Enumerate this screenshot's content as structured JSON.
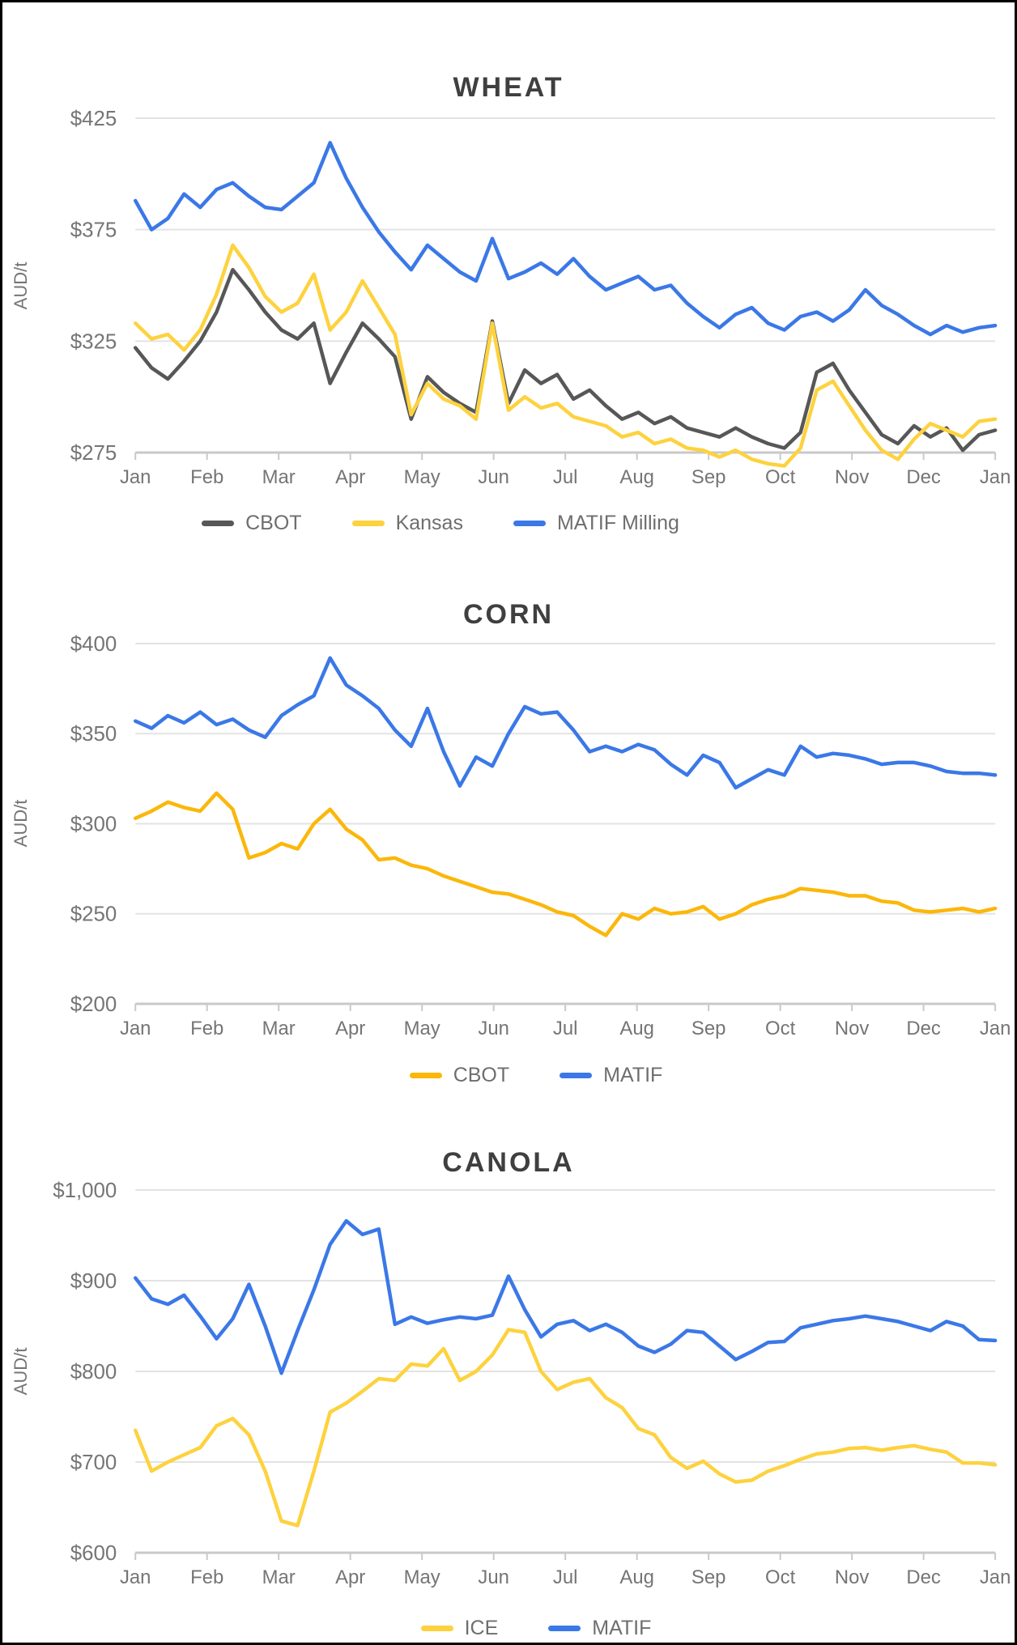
{
  "charts": [
    {
      "title": "WHEAT",
      "y_axis_title": "AUD/t",
      "y_tick_labels": [
        "$425",
        "$375",
        "$325",
        "$275"
      ],
      "x_tick_labels": [
        "Jan",
        "Feb",
        "Mar",
        "Apr",
        "May",
        "Jun",
        "Jul",
        "Aug",
        "Sep",
        "Oct",
        "Nov",
        "Dec",
        "Jan"
      ],
      "legend": [
        {
          "label": "CBOT",
          "color": "#575757"
        },
        {
          "label": "Kansas",
          "color": "#fdd23e"
        },
        {
          "label": "MATIF Milling",
          "color": "#3b78e7"
        }
      ],
      "chart_data": {
        "type": "line",
        "x_unit": "weekly, January through following January",
        "x_month_ticks": [
          "Jan",
          "Feb",
          "Mar",
          "Apr",
          "May",
          "Jun",
          "Jul",
          "Aug",
          "Sep",
          "Oct",
          "Nov",
          "Dec",
          "Jan"
        ],
        "ylabel": "AUD/t",
        "ylim": [
          275,
          425
        ],
        "grid": "horizontal only",
        "legend_position": "bottom",
        "series": [
          {
            "name": "CBOT",
            "color": "#575757",
            "values": [
              322,
              313,
              308,
              316,
              325,
              338,
              357,
              348,
              338,
              330,
              326,
              333,
              306,
              320,
              333,
              326,
              318,
              290,
              309,
              302,
              297,
              293,
              334,
              297,
              312,
              306,
              310,
              299,
              303,
              296,
              290,
              293,
              288,
              291,
              286,
              284,
              282,
              286,
              282,
              279,
              277,
              284,
              311,
              315,
              303,
              293,
              283,
              279,
              287,
              282,
              286,
              276,
              283,
              285
            ]
          },
          {
            "name": "Kansas",
            "color": "#fdd23e",
            "values": [
              333,
              326,
              328,
              321,
              330,
              346,
              368,
              358,
              345,
              338,
              342,
              355,
              330,
              338,
              352,
              340,
              328,
              292,
              306,
              299,
              296,
              290,
              333,
              294,
              300,
              295,
              297,
              291,
              289,
              287,
              282,
              284,
              279,
              281,
              277,
              276,
              273,
              276,
              272,
              270,
              269,
              277,
              303,
              307,
              296,
              285,
              276,
              272,
              281,
              288,
              285,
              282,
              289,
              290
            ]
          },
          {
            "name": "MATIF Milling",
            "color": "#3b78e7",
            "values": [
              388,
              375,
              380,
              391,
              385,
              393,
              396,
              390,
              385,
              384,
              390,
              396,
              414,
              398,
              385,
              374,
              365,
              357,
              368,
              362,
              356,
              352,
              371,
              353,
              356,
              360,
              355,
              362,
              354,
              348,
              351,
              354,
              348,
              350,
              342,
              336,
              331,
              337,
              340,
              333,
              330,
              336,
              338,
              334,
              339,
              348,
              341,
              337,
              332,
              328,
              332,
              329,
              331,
              332
            ]
          }
        ]
      }
    },
    {
      "title": "CORN",
      "y_axis_title": "AUD/t",
      "y_tick_labels": [
        "$400",
        "$350",
        "$300",
        "$250",
        "$200"
      ],
      "x_tick_labels": [
        "Jan",
        "Feb",
        "Mar",
        "Apr",
        "May",
        "Jun",
        "Jul",
        "Aug",
        "Sep",
        "Oct",
        "Nov",
        "Dec",
        "Jan"
      ],
      "legend": [
        {
          "label": "CBOT",
          "color": "#fbb70a"
        },
        {
          "label": "MATIF",
          "color": "#3b78e7"
        }
      ],
      "chart_data": {
        "type": "line",
        "x_unit": "weekly, January through following January",
        "x_month_ticks": [
          "Jan",
          "Feb",
          "Mar",
          "Apr",
          "May",
          "Jun",
          "Jul",
          "Aug",
          "Sep",
          "Oct",
          "Nov",
          "Dec",
          "Jan"
        ],
        "ylabel": "AUD/t",
        "ylim": [
          200,
          400
        ],
        "grid": "horizontal only",
        "legend_position": "bottom",
        "series": [
          {
            "name": "CBOT",
            "color": "#fbb70a",
            "values": [
              303,
              307,
              312,
              309,
              307,
              317,
              308,
              281,
              284,
              289,
              286,
              300,
              308,
              297,
              291,
              280,
              281,
              277,
              275,
              271,
              268,
              265,
              262,
              261,
              258,
              255,
              251,
              249,
              243,
              238,
              250,
              247,
              253,
              250,
              251,
              254,
              247,
              250,
              255,
              258,
              260,
              264,
              263,
              262,
              260,
              260,
              257,
              256,
              252,
              251,
              252,
              253,
              251,
              253
            ]
          },
          {
            "name": "MATIF",
            "color": "#3b78e7",
            "values": [
              357,
              353,
              360,
              356,
              362,
              355,
              358,
              352,
              348,
              360,
              366,
              371,
              392,
              377,
              371,
              364,
              352,
              343,
              364,
              340,
              321,
              337,
              332,
              350,
              365,
              361,
              362,
              352,
              340,
              343,
              340,
              344,
              341,
              333,
              327,
              338,
              334,
              320,
              325,
              330,
              327,
              343,
              337,
              339,
              338,
              336,
              333,
              334,
              334,
              332,
              329,
              328,
              328,
              327
            ]
          }
        ]
      }
    },
    {
      "title": "CANOLA",
      "y_axis_title": "AUD/t",
      "y_tick_labels": [
        "$1,000",
        "$900",
        "$800",
        "$700",
        "$600"
      ],
      "x_tick_labels": [
        "Jan",
        "Feb",
        "Mar",
        "Apr",
        "May",
        "Jun",
        "Jul",
        "Aug",
        "Sep",
        "Oct",
        "Nov",
        "Dec",
        "Jan"
      ],
      "legend": [
        {
          "label": "ICE",
          "color": "#fdd23e"
        },
        {
          "label": "MATIF",
          "color": "#3b78e7"
        }
      ],
      "chart_data": {
        "type": "line",
        "x_unit": "weekly, January through following January",
        "x_month_ticks": [
          "Jan",
          "Feb",
          "Mar",
          "Apr",
          "May",
          "Jun",
          "Jul",
          "Aug",
          "Sep",
          "Oct",
          "Nov",
          "Dec",
          "Jan"
        ],
        "ylabel": "AUD/t",
        "ylim": [
          600,
          1000
        ],
        "grid": "horizontal only",
        "legend_position": "bottom",
        "series": [
          {
            "name": "ICE",
            "color": "#fdd23e",
            "values": [
              735,
              690,
              700,
              708,
              716,
              740,
              748,
              730,
              690,
              635,
              630,
              690,
              755,
              765,
              778,
              792,
              790,
              808,
              806,
              825,
              790,
              800,
              818,
              846,
              843,
              800,
              780,
              788,
              792,
              771,
              760,
              737,
              730,
              705,
              693,
              701,
              687,
              678,
              680,
              690,
              696,
              703,
              709,
              711,
              715,
              716,
              713,
              716,
              718,
              714,
              711,
              699,
              699,
              697
            ]
          },
          {
            "name": "MATIF",
            "color": "#3b78e7",
            "values": [
              903,
              880,
              874,
              884,
              861,
              836,
              858,
              896,
              850,
              798,
              845,
              890,
              940,
              966,
              951,
              957,
              852,
              860,
              853,
              857,
              860,
              858,
              862,
              905,
              868,
              838,
              852,
              856,
              845,
              852,
              843,
              828,
              821,
              830,
              845,
              843,
              828,
              813,
              822,
              832,
              833,
              848,
              852,
              856,
              858,
              861,
              858,
              855,
              850,
              845,
              855,
              850,
              835,
              834
            ]
          }
        ]
      }
    }
  ]
}
